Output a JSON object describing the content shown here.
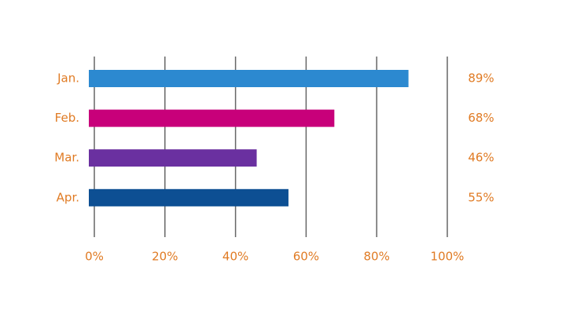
{
  "chart_data": {
    "type": "bar",
    "orientation": "horizontal",
    "categories": [
      "Jan.",
      "Feb.",
      "Mar.",
      "Apr."
    ],
    "values": [
      89,
      68,
      46,
      55
    ],
    "value_labels": [
      "89%",
      "68%",
      "46%",
      "55%"
    ],
    "colors": [
      "#2c89d0",
      "#c8007a",
      "#6a30a0",
      "#0d4f93"
    ],
    "xlim": [
      0,
      100
    ],
    "xticks": [
      {
        "value": 0,
        "label": "0%"
      },
      {
        "value": 20,
        "label": "20%"
      },
      {
        "value": 40,
        "label": "40%"
      },
      {
        "value": 60,
        "label": "60%"
      },
      {
        "value": 80,
        "label": "80%"
      },
      {
        "value": 100,
        "label": "100%"
      }
    ],
    "grid": true
  }
}
